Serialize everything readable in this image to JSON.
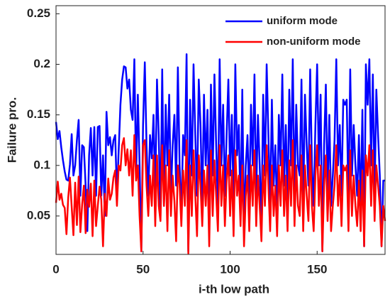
{
  "chart_data": {
    "type": "line",
    "x_label": "i-th low path",
    "y_label": "Failure pro.",
    "xlim": [
      0,
      189
    ],
    "ylim": [
      0.012,
      0.258
    ],
    "xticks": [
      0,
      50,
      100,
      150
    ],
    "yticks": [
      0.05,
      0.1,
      0.15,
      0.2,
      0.25
    ],
    "legend": "upper right",
    "x": [
      0,
      1,
      2,
      3,
      4,
      5,
      6,
      7,
      8,
      9,
      10,
      11,
      12,
      13,
      14,
      15,
      16,
      17,
      18,
      19,
      20,
      21,
      22,
      23,
      24,
      25,
      26,
      27,
      28,
      29,
      30,
      31,
      32,
      33,
      34,
      35,
      36,
      37,
      38,
      39,
      40,
      41,
      42,
      43,
      44,
      45,
      46,
      47,
      48,
      49,
      50,
      51,
      52,
      53,
      54,
      55,
      56,
      57,
      58,
      59,
      60,
      61,
      62,
      63,
      64,
      65,
      66,
      67,
      68,
      69,
      70,
      71,
      72,
      73,
      74,
      75,
      76,
      77,
      78,
      79,
      80,
      81,
      82,
      83,
      84,
      85,
      86,
      87,
      88,
      89,
      90,
      91,
      92,
      93,
      94,
      95,
      96,
      97,
      98,
      99,
      100,
      101,
      102,
      103,
      104,
      105,
      106,
      107,
      108,
      109,
      110,
      111,
      112,
      113,
      114,
      115,
      116,
      117,
      118,
      119,
      120,
      121,
      122,
      123,
      124,
      125,
      126,
      127,
      128,
      129,
      130,
      131,
      132,
      133,
      134,
      135,
      136,
      137,
      138,
      139,
      140,
      141,
      142,
      143,
      144,
      145,
      146,
      147,
      148,
      149,
      150,
      151,
      152,
      153,
      154,
      155,
      156,
      157,
      158,
      159,
      160,
      161,
      162,
      163,
      164,
      165,
      166,
      167,
      168,
      169,
      170,
      171,
      172,
      173,
      174,
      175,
      176,
      177,
      178,
      179,
      180,
      181,
      182,
      183,
      184,
      185,
      186,
      187,
      188,
      189
    ],
    "series": [
      {
        "name": "uniform mode",
        "color": "#0000ff",
        "values": [
          0.143,
          0.126,
          0.134,
          0.118,
          0.105,
          0.094,
          0.086,
          0.085,
          0.101,
          0.131,
          0.09,
          0.1,
          0.125,
          0.145,
          0.07,
          0.12,
          0.118,
          0.08,
          0.035,
          0.11,
          0.137,
          0.09,
          0.138,
          0.07,
          0.138,
          0.139,
          0.07,
          0.11,
          0.05,
          0.153,
          0.12,
          0.128,
          0.11,
          0.125,
          0.13,
          0.07,
          0.115,
          0.16,
          0.185,
          0.198,
          0.197,
          0.176,
          0.185,
          0.155,
          0.145,
          0.205,
          0.09,
          0.17,
          0.1,
          0.015,
          0.14,
          0.202,
          0.12,
          0.07,
          0.13,
          0.107,
          0.15,
          0.07,
          0.185,
          0.13,
          0.05,
          0.195,
          0.06,
          0.16,
          0.1,
          0.17,
          0.07,
          0.12,
          0.15,
          0.08,
          0.197,
          0.1,
          0.05,
          0.13,
          0.11,
          0.21,
          0.015,
          0.165,
          0.09,
          0.2,
          0.13,
          0.07,
          0.185,
          0.14,
          0.06,
          0.17,
          0.1,
          0.155,
          0.05,
          0.18,
          0.09,
          0.19,
          0.12,
          0.06,
          0.205,
          0.1,
          0.16,
          0.07,
          0.13,
          0.185,
          0.09,
          0.15,
          0.06,
          0.2,
          0.11,
          0.14,
          0.05,
          0.175,
          0.035,
          0.1,
          0.13,
          0.06,
          0.16,
          0.1,
          0.19,
          0.07,
          0.15,
          0.1,
          0.04,
          0.17,
          0.09,
          0.2,
          0.13,
          0.06,
          0.165,
          0.08,
          0.12,
          0.05,
          0.15,
          0.1,
          0.19,
          0.08,
          0.14,
          0.06,
          0.175,
          0.1,
          0.205,
          0.07,
          0.16,
          0.1,
          0.09,
          0.185,
          0.06,
          0.17,
          0.12,
          0.08,
          0.195,
          0.1,
          0.06,
          0.14,
          0.2,
          0.1,
          0.17,
          0.015,
          0.12,
          0.18,
          0.07,
          0.15,
          0.06,
          0.09,
          0.125,
          0.205,
          0.1,
          0.14,
          0.07,
          0.165,
          0.16,
          0.165,
          0.06,
          0.195,
          0.09,
          0.14,
          0.1,
          0.07,
          0.13,
          0.06,
          0.155,
          0.02,
          0.2,
          0.16,
          0.205,
          0.1,
          0.19,
          0.07,
          0.175,
          0.13,
          0.09,
          0.02,
          0.085,
          0.085
        ]
      },
      {
        "name": "non-uniform mode",
        "color": "#ff0000",
        "values": [
          0.063,
          0.084,
          0.066,
          0.072,
          0.061,
          0.058,
          0.032,
          0.068,
          0.088,
          0.059,
          0.031,
          0.083,
          0.041,
          0.089,
          0.034,
          0.061,
          0.08,
          0.033,
          0.076,
          0.059,
          0.082,
          0.03,
          0.085,
          0.04,
          0.06,
          0.079,
          0.066,
          0.02,
          0.072,
          0.05,
          0.087,
          0.066,
          0.072,
          0.088,
          0.095,
          0.06,
          0.1,
          0.095,
          0.12,
          0.127,
          0.1,
          0.116,
          0.09,
          0.115,
          0.07,
          0.13,
          0.085,
          0.1,
          0.05,
          0.015,
          0.12,
          0.125,
          0.08,
          0.05,
          0.09,
          0.06,
          0.11,
          0.04,
          0.11,
          0.06,
          0.045,
          0.12,
          0.06,
          0.1,
          0.035,
          0.115,
          0.05,
          0.09,
          0.065,
          0.025,
          0.1,
          0.08,
          0.04,
          0.095,
          0.06,
          0.125,
          0.013,
          0.1,
          0.05,
          0.115,
          0.07,
          0.03,
          0.11,
          0.08,
          0.04,
          0.095,
          0.06,
          0.1,
          0.02,
          0.115,
          0.05,
          0.105,
          0.07,
          0.035,
          0.12,
          0.06,
          0.1,
          0.04,
          0.085,
          0.11,
          0.05,
          0.095,
          0.03,
          0.115,
          0.07,
          0.09,
          0.04,
          0.1,
          0.02,
          0.07,
          0.09,
          0.035,
          0.1,
          0.06,
          0.115,
          0.04,
          0.09,
          0.06,
          0.025,
          0.1,
          0.06,
          0.12,
          0.08,
          0.035,
          0.1,
          0.05,
          0.08,
          0.03,
          0.1,
          0.06,
          0.115,
          0.05,
          0.09,
          0.035,
          0.105,
          0.06,
          0.125,
          0.04,
          0.1,
          0.06,
          0.05,
          0.11,
          0.035,
          0.1,
          0.07,
          0.045,
          0.12,
          0.06,
          0.035,
          0.09,
          0.12,
          0.06,
          0.1,
          0.015,
          0.08,
          0.11,
          0.045,
          0.095,
          0.035,
          0.06,
          0.08,
          0.12,
          0.06,
          0.09,
          0.04,
          0.1,
          0.095,
          0.1,
          0.035,
          0.115,
          0.05,
          0.09,
          0.06,
          0.04,
          0.085,
          0.035,
          0.095,
          0.02,
          0.11,
          0.09,
          0.12,
          0.06,
          0.115,
          0.045,
          0.1,
          0.08,
          0.06,
          0.02,
          0.06,
          0.045
        ]
      }
    ]
  }
}
